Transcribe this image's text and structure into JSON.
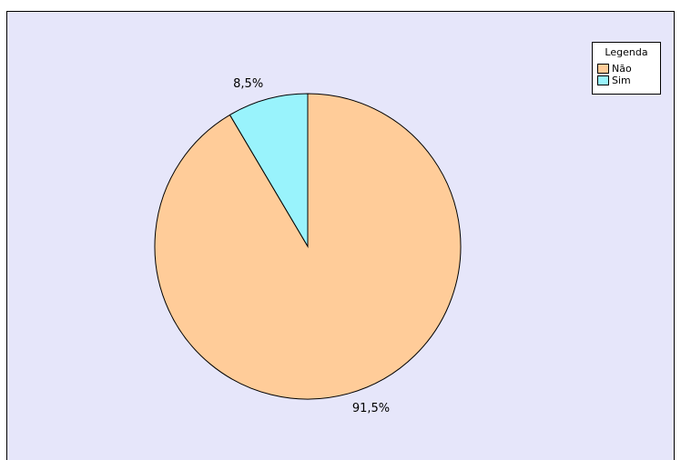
{
  "chart_data": {
    "type": "pie",
    "categories": [
      "Não",
      "Sim"
    ],
    "values": [
      91.5,
      8.5
    ],
    "value_labels": [
      "91,5%",
      "8,5%"
    ],
    "colors": [
      "#ffcc99",
      "#99f3fc"
    ],
    "legend_title": "Legenda",
    "legend": "top-right"
  }
}
